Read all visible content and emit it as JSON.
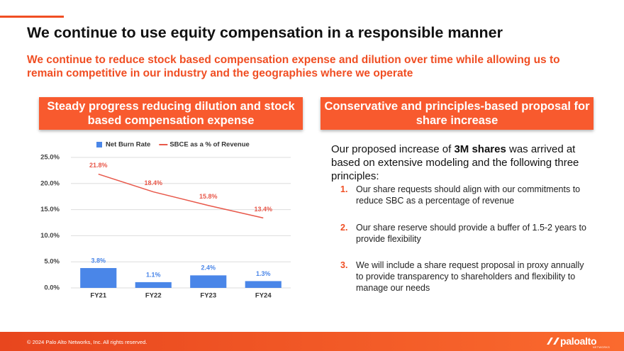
{
  "header": {
    "title": "We continue to use equity compensation in a responsible manner",
    "subtitle": "We continue to reduce stock based compensation expense and dilution over time while allowing us to remain competitive in our industry and the geographies where we operate"
  },
  "left_panel": {
    "heading": "Steady progress reducing dilution and stock based compensation expense"
  },
  "chart_data": {
    "type": "combo",
    "categories": [
      "FY21",
      "FY22",
      "FY23",
      "FY24"
    ],
    "series": [
      {
        "name": "Net Burn Rate",
        "type": "bar",
        "color": "#4a86e8",
        "values": [
          3.8,
          1.1,
          2.4,
          1.3
        ],
        "value_labels": [
          "3.8%",
          "1.1%",
          "2.4%",
          "1.3%"
        ]
      },
      {
        "name": "SBCE as a % of Revenue",
        "type": "line",
        "color": "#e8584a",
        "values": [
          21.8,
          18.4,
          15.8,
          13.4
        ],
        "value_labels": [
          "21.8%",
          "18.4%",
          "15.8%",
          "13.4%"
        ]
      }
    ],
    "ylim": [
      0,
      25
    ],
    "yticks": [
      {
        "value": 0,
        "label": "0.0%"
      },
      {
        "value": 5,
        "label": "5.0%"
      },
      {
        "value": 10,
        "label": "10.0%"
      },
      {
        "value": 15,
        "label": "15.0%"
      },
      {
        "value": 20,
        "label": "20.0%"
      },
      {
        "value": 25,
        "label": "25.0%"
      }
    ],
    "grid": true,
    "legend": "top"
  },
  "right_panel": {
    "heading": "Conservative and principles-based proposal for share increase",
    "intro": [
      "Our proposed increase of ",
      "3M shares",
      " was arrived at based on extensive modeling and the following three principles:"
    ],
    "principles": [
      {
        "number": "1.",
        "text": "Our share requests should align with our commitments to reduce SBC as a percentage of revenue"
      },
      {
        "number": "2.",
        "text": "Our share reserve should provide a buffer of 1.5-2 years to provide flexibility"
      },
      {
        "number": "3.",
        "text": "We will include a share request proposal in proxy annually to provide transparency to shareholders and flexibility to manage our needs"
      }
    ]
  },
  "footer": {
    "copyright": "© 2024 Palo Alto Networks, Inc. All rights reserved.",
    "logo": "paloalto",
    "logo_sub": "NETWORKS"
  }
}
